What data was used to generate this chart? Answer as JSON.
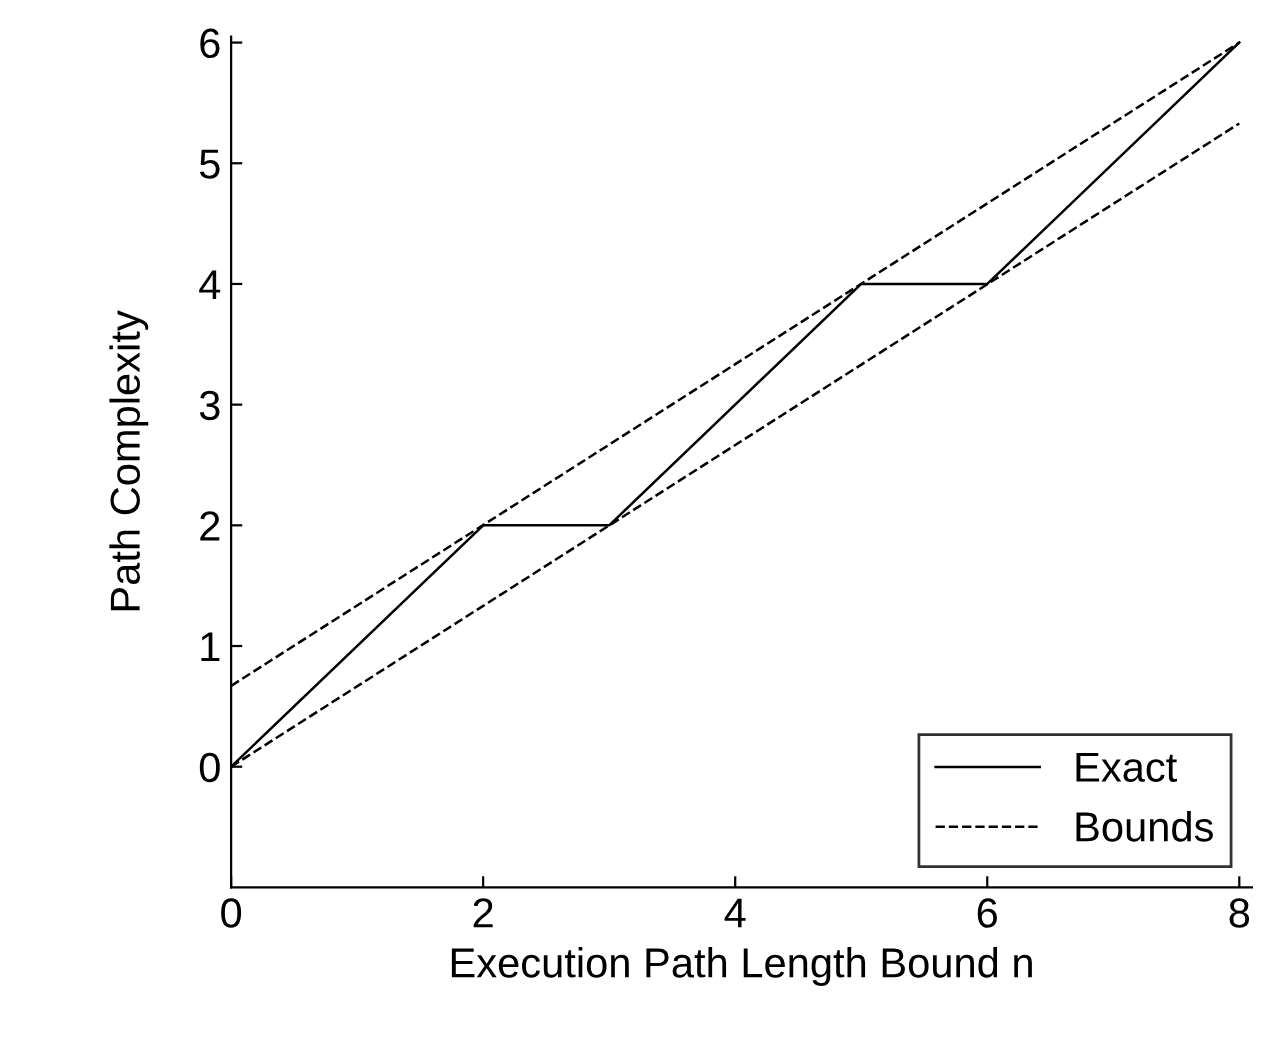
{
  "chart_data": {
    "type": "line",
    "xlabel": "Execution Path Length Bound n",
    "ylabel": "Path Complexity",
    "series": [
      {
        "name": "Exact",
        "color": "#000000",
        "line_style": "solid",
        "x": [
          0,
          2,
          3,
          5,
          6,
          8
        ],
        "values": [
          0,
          2,
          2,
          4,
          4,
          6
        ]
      },
      {
        "name": "Bounds",
        "color": "#000000",
        "line_style": "dashed",
        "x": [
          0,
          8
        ],
        "values": [
          0.67,
          6
        ]
      },
      {
        "color": "#000000",
        "line_style": "dashed",
        "x": [
          0,
          8
        ],
        "values": [
          0,
          5.33
        ]
      }
    ],
    "xlim": [
      0,
      8.1
    ],
    "ylim": [
      -1,
      6.05
    ],
    "xticks": [
      0,
      2,
      4,
      6,
      8
    ],
    "yticks": [
      0,
      1,
      2,
      3,
      4,
      5,
      6
    ],
    "grid": false,
    "legend": "bottom right",
    "marker": "none"
  }
}
